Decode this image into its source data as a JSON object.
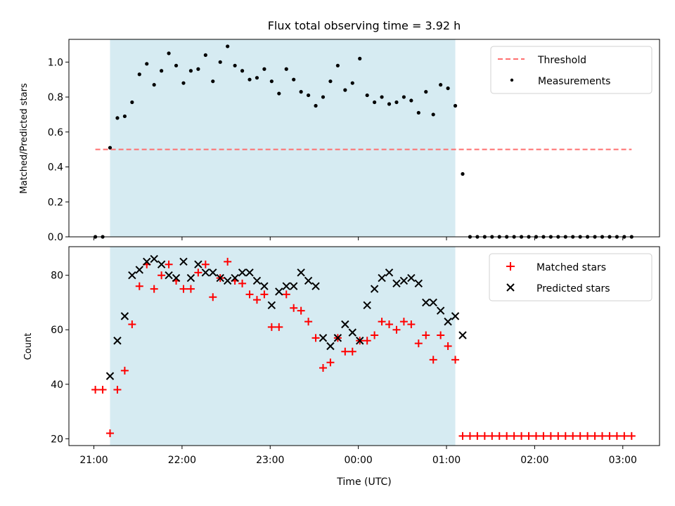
{
  "figure": {
    "title": "Flux total observing time = 3.92 h",
    "xlabel": "Time (UTC)"
  },
  "x_ticks": [
    {
      "t": 0,
      "label": "21:00"
    },
    {
      "t": 60,
      "label": "22:00"
    },
    {
      "t": 120,
      "label": "23:00"
    },
    {
      "t": 180,
      "label": "00:00"
    },
    {
      "t": 240,
      "label": "01:00"
    },
    {
      "t": 300,
      "label": "02:00"
    },
    {
      "t": 360,
      "label": "03:00"
    }
  ],
  "colors": {
    "shade": "#add8e6",
    "threshold": "#ff6f6f",
    "measurements": "#000000",
    "matched": "#ff0000",
    "predicted": "#000000"
  },
  "chart_data": [
    {
      "type": "scatter",
      "ylabel": "Matched/Predicted stars",
      "xlim": [
        "20:43",
        "03:25"
      ],
      "ylim": [
        0,
        1.13
      ],
      "yticks": [
        "0.0",
        "0.2",
        "0.4",
        "0.6",
        "0.8",
        "1.0"
      ],
      "shaded_span": [
        "21:11",
        "01:06"
      ],
      "legend": [
        "Threshold",
        "Measurements"
      ],
      "legend_position": "top-right",
      "threshold": {
        "name": "Threshold",
        "y": 0.5,
        "x": [
          "21:01",
          "03:06"
        ]
      },
      "series": [
        {
          "name": "Measurements",
          "x": [
            "21:01",
            "21:06",
            "21:11",
            "21:16",
            "21:21",
            "21:26",
            "21:31",
            "21:36",
            "21:41",
            "21:46",
            "21:51",
            "21:56",
            "22:01",
            "22:06",
            "22:11",
            "22:16",
            "22:21",
            "22:26",
            "22:31",
            "22:36",
            "22:41",
            "22:46",
            "22:51",
            "22:56",
            "23:01",
            "23:06",
            "23:11",
            "23:16",
            "23:21",
            "23:26",
            "23:31",
            "23:36",
            "23:41",
            "23:46",
            "23:51",
            "23:56",
            "00:01",
            "00:06",
            "00:11",
            "00:16",
            "00:21",
            "00:26",
            "00:31",
            "00:36",
            "00:41",
            "00:46",
            "00:51",
            "00:56",
            "01:01",
            "01:06",
            "01:11",
            "01:16",
            "01:21",
            "01:26",
            "01:31",
            "01:36",
            "01:41",
            "01:46",
            "01:51",
            "01:56",
            "02:01",
            "02:06",
            "02:11",
            "02:16",
            "02:21",
            "02:26",
            "02:31",
            "02:36",
            "02:41",
            "02:46",
            "02:51",
            "02:56",
            "03:01",
            "03:06"
          ],
          "y": [
            0.0,
            0.0,
            0.51,
            0.68,
            0.69,
            0.77,
            0.93,
            0.99,
            0.87,
            0.95,
            1.05,
            0.98,
            0.88,
            0.95,
            0.96,
            1.04,
            0.89,
            1.0,
            1.09,
            0.98,
            0.95,
            0.9,
            0.91,
            0.96,
            0.89,
            0.82,
            0.96,
            0.9,
            0.83,
            0.81,
            0.75,
            0.8,
            0.89,
            0.98,
            0.84,
            0.88,
            1.02,
            0.81,
            0.77,
            0.8,
            0.76,
            0.77,
            0.8,
            0.78,
            0.71,
            0.83,
            0.7,
            0.87,
            0.85,
            0.75,
            0.36,
            0.0,
            0.0,
            0.0,
            0.0,
            0.0,
            0.0,
            0.0,
            0.0,
            0.0,
            0.0,
            0.0,
            0.0,
            0.0,
            0.0,
            0.0,
            0.0,
            0.0,
            0.0,
            0.0,
            0.0,
            0.0,
            0.0,
            0.0
          ]
        }
      ]
    },
    {
      "type": "scatter",
      "ylabel": "Count",
      "xlim": [
        "20:43",
        "03:25"
      ],
      "ylim": [
        17.5,
        90.5
      ],
      "yticks": [
        "20",
        "40",
        "60",
        "80"
      ],
      "shaded_span": [
        "21:11",
        "01:06"
      ],
      "legend": [
        "Matched stars",
        "Predicted stars"
      ],
      "legend_position": "top-right",
      "series": [
        {
          "name": "Matched stars",
          "marker": "+",
          "x": [
            "21:01",
            "21:06",
            "21:11",
            "21:16",
            "21:21",
            "21:26",
            "21:31",
            "21:36",
            "21:41",
            "21:46",
            "21:51",
            "21:56",
            "22:01",
            "22:06",
            "22:11",
            "22:16",
            "22:21",
            "22:26",
            "22:31",
            "22:36",
            "22:41",
            "22:46",
            "22:51",
            "22:56",
            "23:01",
            "23:06",
            "23:11",
            "23:16",
            "23:21",
            "23:26",
            "23:31",
            "23:36",
            "23:41",
            "23:46",
            "23:51",
            "23:56",
            "00:01",
            "00:06",
            "00:11",
            "00:16",
            "00:21",
            "00:26",
            "00:31",
            "00:36",
            "00:41",
            "00:46",
            "00:51",
            "00:56",
            "01:01",
            "01:06",
            "01:11",
            "01:16",
            "01:21",
            "01:26",
            "01:31",
            "01:36",
            "01:41",
            "01:46",
            "01:51",
            "01:56",
            "02:01",
            "02:06",
            "02:11",
            "02:16",
            "02:21",
            "02:26",
            "02:31",
            "02:36",
            "02:41",
            "02:46",
            "02:51",
            "02:56",
            "03:01",
            "03:06"
          ],
          "y": [
            38,
            38,
            22,
            38,
            45,
            62,
            76,
            84,
            75,
            80,
            84,
            78,
            75,
            75,
            81,
            84,
            72,
            79,
            85,
            78,
            77,
            73,
            71,
            73,
            61,
            61,
            73,
            68,
            67,
            63,
            57,
            46,
            48,
            57,
            52,
            52,
            56,
            56,
            58,
            63,
            62,
            60,
            63,
            62,
            55,
            58,
            49,
            58,
            54,
            49,
            21,
            21,
            21,
            21,
            21,
            21,
            21,
            21,
            21,
            21,
            21,
            21,
            21,
            21,
            21,
            21,
            21,
            21,
            21,
            21,
            21,
            21,
            21,
            21
          ]
        },
        {
          "name": "Predicted stars",
          "marker": "x",
          "x": [
            "21:11",
            "21:16",
            "21:21",
            "21:26",
            "21:31",
            "21:36",
            "21:41",
            "21:46",
            "21:51",
            "21:56",
            "22:01",
            "22:06",
            "22:11",
            "22:16",
            "22:21",
            "22:26",
            "22:31",
            "22:36",
            "22:41",
            "22:46",
            "22:51",
            "22:56",
            "23:01",
            "23:06",
            "23:11",
            "23:16",
            "23:21",
            "23:26",
            "23:31",
            "23:36",
            "23:41",
            "23:46",
            "23:51",
            "23:56",
            "00:01",
            "00:06",
            "00:11",
            "00:16",
            "00:21",
            "00:26",
            "00:31",
            "00:36",
            "00:41",
            "00:46",
            "00:51",
            "00:56",
            "01:01",
            "01:06",
            "01:11"
          ],
          "y": [
            43,
            56,
            65,
            80,
            82,
            85,
            86,
            84,
            80,
            79,
            85,
            79,
            84,
            81,
            81,
            79,
            78,
            79,
            81,
            81,
            78,
            76,
            69,
            74,
            76,
            76,
            81,
            78,
            76,
            57,
            54,
            57,
            62,
            59,
            56,
            69,
            75,
            79,
            81,
            77,
            78,
            79,
            77,
            70,
            70,
            67,
            63,
            65,
            58
          ]
        }
      ]
    }
  ]
}
